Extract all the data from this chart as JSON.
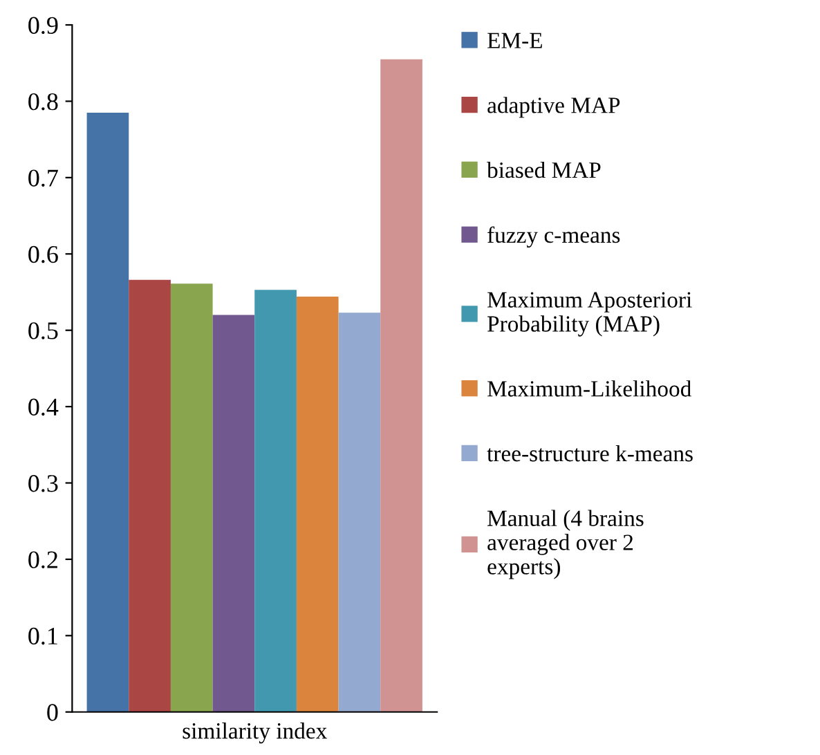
{
  "chart_data": {
    "type": "bar",
    "categories": [
      null,
      null,
      null,
      null,
      null,
      null,
      null,
      null
    ],
    "xlabel": "similarity index",
    "series": [
      {
        "name": "EM-E",
        "color": "#4572a7",
        "values": [
          0.785,
          null,
          null,
          null,
          null,
          null,
          null,
          null
        ]
      },
      {
        "name": "adaptive MAP",
        "color": "#aa4643",
        "values": [
          null,
          0.566,
          null,
          null,
          null,
          null,
          null,
          null
        ]
      },
      {
        "name": "biased MAP",
        "color": "#89a54e",
        "values": [
          null,
          null,
          0.561,
          null,
          null,
          null,
          null,
          null
        ]
      },
      {
        "name": "fuzzy c-means",
        "color": "#71588f",
        "values": [
          null,
          null,
          null,
          0.52,
          null,
          null,
          null,
          null
        ]
      },
      {
        "name": "Maximum Aposteriori\nProbability (MAP)",
        "color": "#4198af",
        "values": [
          null,
          null,
          null,
          null,
          0.553,
          null,
          null,
          null
        ]
      },
      {
        "name": "Maximum-Likelihood",
        "color": "#db843d",
        "values": [
          null,
          null,
          null,
          null,
          null,
          0.544,
          null,
          null
        ]
      },
      {
        "name": "tree-structure k-means",
        "color": "#93a9cf",
        "values": [
          null,
          null,
          null,
          null,
          null,
          null,
          0.523,
          null
        ]
      },
      {
        "name": "Manual (4 brains\naveraged over 2\nexperts)",
        "color": "#d09391",
        "values": [
          null,
          null,
          null,
          null,
          null,
          null,
          null,
          0.855
        ]
      }
    ],
    "ylim": [
      0,
      0.9
    ],
    "yticks": [
      0,
      0.1,
      0.2,
      0.3,
      0.4,
      0.5,
      0.6,
      0.7,
      0.8,
      0.9
    ],
    "grid": false,
    "legend": "right"
  }
}
